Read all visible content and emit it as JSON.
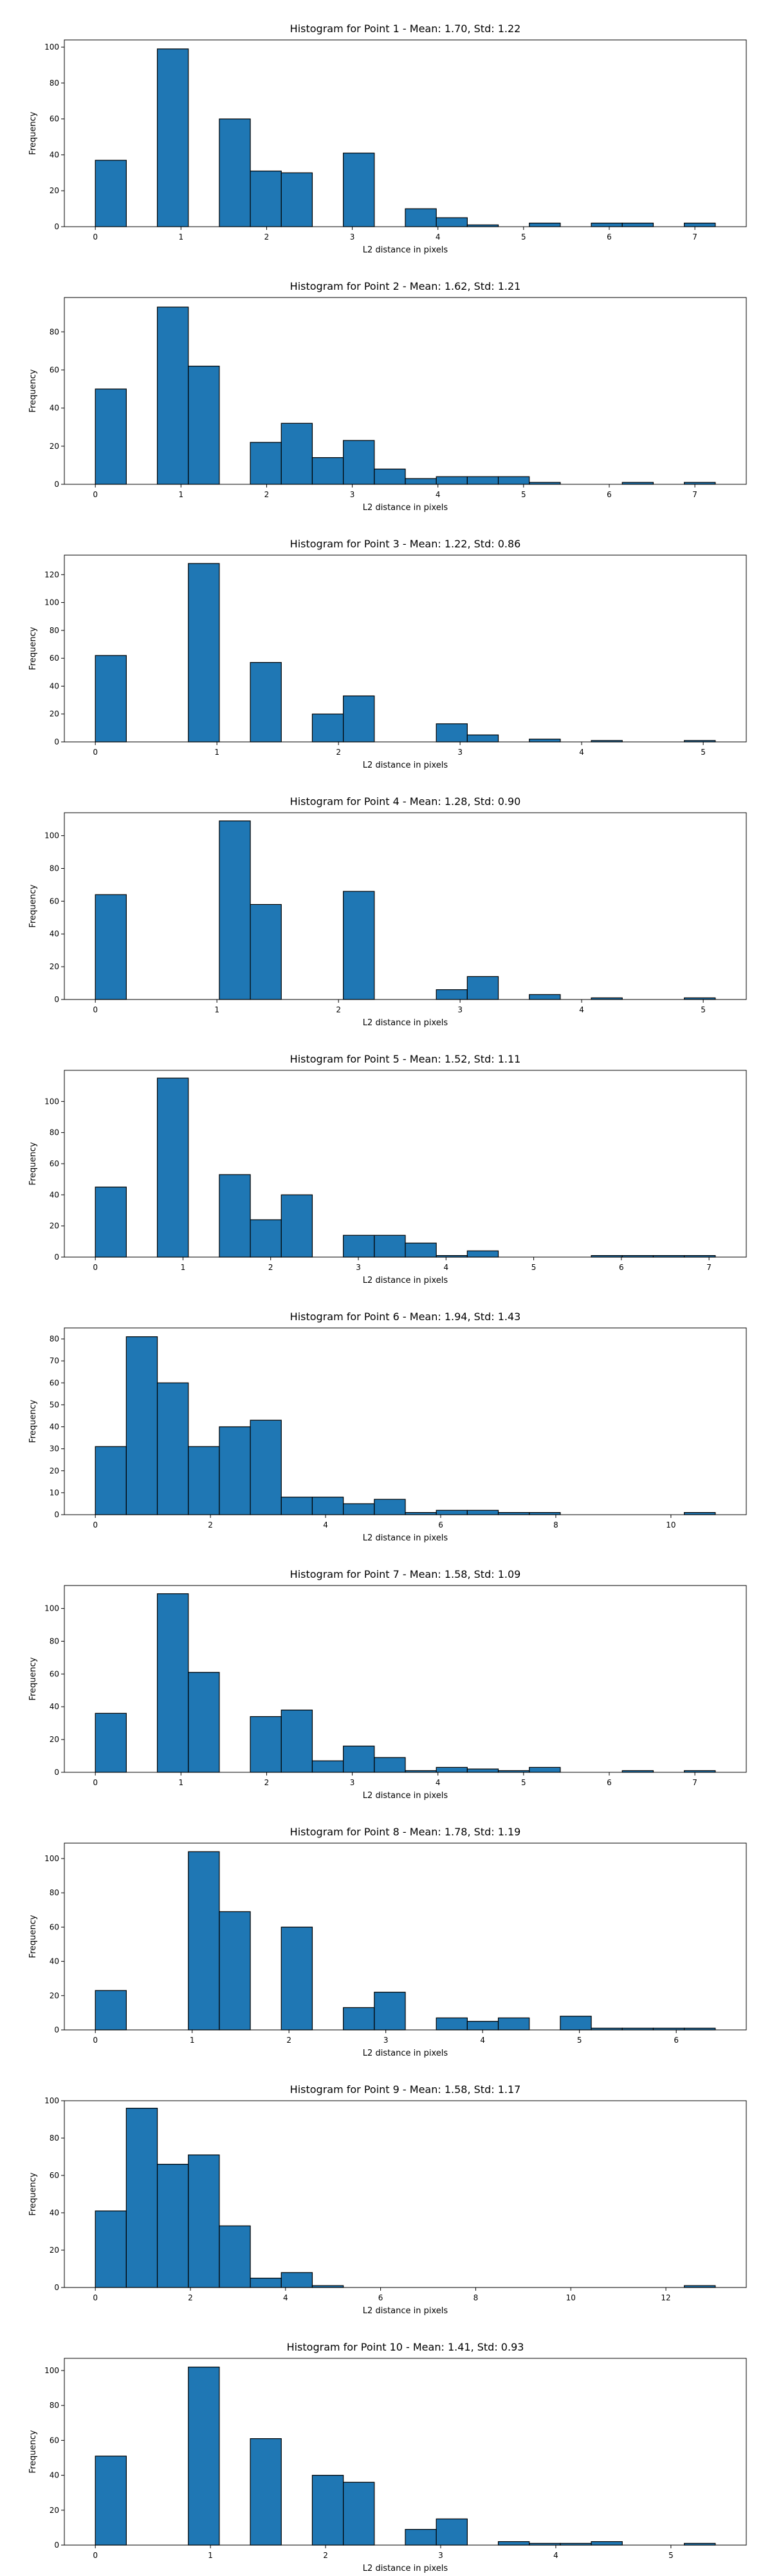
{
  "chart_data": [
    {
      "type": "bar",
      "title": "Histogram for Point 1 - Mean: 1.70, Std: 1.22",
      "xlabel": "L2 distance in pixels",
      "ylabel": "Frequency",
      "bin_edges": [
        0,
        0.3619,
        0.7238,
        1.0857,
        1.4476,
        1.8095,
        2.1714,
        2.5333,
        2.8952,
        3.2571,
        3.619,
        3.981,
        4.3429,
        4.7048,
        5.0667,
        5.4286,
        5.7905,
        6.1524,
        6.5143,
        6.8762,
        7.2381
      ],
      "values": [
        37,
        0,
        99,
        0,
        60,
        31,
        30,
        0,
        41,
        0,
        10,
        5,
        1,
        0,
        2,
        0,
        2,
        2,
        0,
        2
      ],
      "xticks": [
        0,
        1,
        2,
        3,
        4,
        5,
        6,
        7
      ],
      "yticks": [
        0,
        20,
        40,
        60,
        80,
        100
      ],
      "ylim": [
        0,
        104
      ]
    },
    {
      "type": "bar",
      "title": "Histogram for Point 2 - Mean: 1.62, Std: 1.21",
      "xlabel": "L2 distance in pixels",
      "ylabel": "Frequency",
      "bin_edges": [
        0,
        0.3619,
        0.7238,
        1.0857,
        1.4476,
        1.8095,
        2.1714,
        2.5333,
        2.8952,
        3.2571,
        3.619,
        3.981,
        4.3429,
        4.7048,
        5.0667,
        5.4286,
        5.7905,
        6.1524,
        6.5143,
        6.8762,
        7.2381
      ],
      "values": [
        50,
        0,
        93,
        62,
        0,
        22,
        32,
        14,
        23,
        8,
        3,
        4,
        4,
        4,
        1,
        0,
        0,
        1,
        0,
        1
      ],
      "xticks": [
        0,
        1,
        2,
        3,
        4,
        5,
        6,
        7
      ],
      "yticks": [
        0,
        20,
        40,
        60,
        80
      ],
      "ylim": [
        0,
        98
      ]
    },
    {
      "type": "bar",
      "title": "Histogram for Point 3 - Mean: 1.22, Std: 0.86",
      "xlabel": "L2 distance in pixels",
      "ylabel": "Frequency",
      "bin_edges": [
        0,
        0.255,
        0.5099,
        0.7649,
        1.0198,
        1.2748,
        1.5297,
        1.7847,
        2.0396,
        2.2946,
        2.5495,
        2.8045,
        3.0594,
        3.3144,
        3.5693,
        3.8243,
        4.0792,
        4.3342,
        4.5891,
        4.8441,
        5.099
      ],
      "values": [
        62,
        0,
        0,
        128,
        0,
        57,
        0,
        20,
        33,
        0,
        0,
        13,
        5,
        0,
        2,
        0,
        1,
        0,
        0,
        1
      ],
      "xticks": [
        0,
        1,
        2,
        3,
        4,
        5
      ],
      "yticks": [
        0,
        20,
        40,
        60,
        80,
        100,
        120
      ],
      "ylim": [
        0,
        134
      ]
    },
    {
      "type": "bar",
      "title": "Histogram for Point 4 - Mean: 1.28, Std: 0.90",
      "xlabel": "L2 distance in pixels",
      "ylabel": "Frequency",
      "bin_edges": [
        0,
        0.255,
        0.5099,
        0.7649,
        1.0198,
        1.2748,
        1.5297,
        1.7847,
        2.0396,
        2.2946,
        2.5495,
        2.8045,
        3.0594,
        3.3144,
        3.5693,
        3.8243,
        4.0792,
        4.3342,
        4.5891,
        4.8441,
        5.099
      ],
      "values": [
        64,
        0,
        0,
        0,
        109,
        58,
        0,
        0,
        66,
        0,
        0,
        6,
        14,
        0,
        3,
        0,
        1,
        0,
        0,
        1
      ],
      "xticks": [
        0,
        1,
        2,
        3,
        4,
        5
      ],
      "yticks": [
        0,
        20,
        40,
        60,
        80,
        100
      ],
      "ylim": [
        0,
        114
      ]
    },
    {
      "type": "bar",
      "title": "Histogram for Point 5 - Mean: 1.52, Std: 1.11",
      "xlabel": "L2 distance in pixels",
      "ylabel": "Frequency",
      "bin_edges": [
        0,
        0.3536,
        0.7071,
        1.0607,
        1.4142,
        1.7678,
        2.1213,
        2.4749,
        2.8284,
        3.182,
        3.5355,
        3.8891,
        4.2426,
        4.5962,
        4.9497,
        5.3033,
        5.6569,
        6.0104,
        6.364,
        6.7175,
        7.0711
      ],
      "values": [
        45,
        0,
        115,
        0,
        53,
        24,
        40,
        0,
        14,
        14,
        9,
        1,
        4,
        0,
        0,
        0,
        1,
        1,
        1,
        1
      ],
      "xticks": [
        0,
        1,
        2,
        3,
        4,
        5,
        6,
        7
      ],
      "yticks": [
        0,
        20,
        40,
        60,
        80,
        100
      ],
      "ylim": [
        0,
        120
      ]
    },
    {
      "type": "bar",
      "title": "Histogram for Point 6 - Mean: 1.94, Std: 1.43",
      "xlabel": "L2 distance in pixels",
      "ylabel": "Frequency",
      "bin_edges": [
        0,
        0.5385,
        1.077,
        1.6155,
        2.1541,
        2.6926,
        3.2311,
        3.7696,
        4.3081,
        4.8466,
        5.3852,
        5.9237,
        6.4622,
        7.0007,
        7.5392,
        8.0777,
        8.6163,
        9.1548,
        9.6933,
        10.2318,
        10.7703
      ],
      "values": [
        31,
        81,
        60,
        31,
        40,
        43,
        8,
        8,
        5,
        7,
        1,
        2,
        2,
        1,
        1,
        0,
        0,
        0,
        0,
        1
      ],
      "xticks": [
        0,
        2,
        4,
        6,
        8,
        10
      ],
      "yticks": [
        0,
        10,
        20,
        30,
        40,
        50,
        60,
        70,
        80
      ],
      "ylim": [
        0,
        85
      ]
    },
    {
      "type": "bar",
      "title": "Histogram for Point 7 - Mean: 1.58, Std: 1.09",
      "xlabel": "L2 distance in pixels",
      "ylabel": "Frequency",
      "bin_edges": [
        0,
        0.3619,
        0.7238,
        1.0857,
        1.4476,
        1.8095,
        2.1714,
        2.5333,
        2.8952,
        3.2571,
        3.619,
        3.981,
        4.3429,
        4.7048,
        5.0667,
        5.4286,
        5.7905,
        6.1524,
        6.5143,
        6.8762,
        7.2381
      ],
      "values": [
        36,
        0,
        109,
        61,
        0,
        34,
        38,
        7,
        16,
        9,
        1,
        3,
        2,
        1,
        3,
        0,
        0,
        1,
        0,
        1
      ],
      "xticks": [
        0,
        1,
        2,
        3,
        4,
        5,
        6,
        7
      ],
      "yticks": [
        0,
        20,
        40,
        60,
        80,
        100
      ],
      "ylim": [
        0,
        114
      ]
    },
    {
      "type": "bar",
      "title": "Histogram for Point 8 - Mean: 1.78, Std: 1.19",
      "xlabel": "L2 distance in pixels",
      "ylabel": "Frequency",
      "bin_edges": [
        0,
        0.3202,
        0.6403,
        0.9605,
        1.2806,
        1.6008,
        1.9209,
        2.2411,
        2.5612,
        2.8814,
        3.2016,
        3.5217,
        3.8419,
        4.162,
        4.4822,
        4.8023,
        5.1225,
        5.4427,
        5.7628,
        6.083,
        6.4031
      ],
      "values": [
        23,
        0,
        0,
        104,
        69,
        0,
        60,
        0,
        13,
        22,
        0,
        7,
        5,
        7,
        0,
        8,
        1,
        1,
        1,
        1
      ],
      "xticks": [
        0,
        1,
        2,
        3,
        4,
        5,
        6
      ],
      "yticks": [
        0,
        20,
        40,
        60,
        80,
        100
      ],
      "ylim": [
        0,
        109
      ]
    },
    {
      "type": "bar",
      "title": "Histogram for Point 9 - Mean: 1.58, Std: 1.17",
      "xlabel": "L2 distance in pixels",
      "ylabel": "Frequency",
      "bin_edges": [
        0,
        0.6519,
        1.3038,
        1.9558,
        2.6077,
        3.2596,
        3.9115,
        4.5634,
        5.2154,
        5.8673,
        6.5192,
        7.1711,
        7.823,
        8.475,
        9.1269,
        9.7788,
        10.4307,
        11.0826,
        11.7346,
        12.3865,
        13.0384
      ],
      "values": [
        41,
        96,
        66,
        71,
        33,
        5,
        8,
        1,
        0,
        0,
        0,
        0,
        0,
        0,
        0,
        0,
        0,
        0,
        0,
        1
      ],
      "xticks": [
        0,
        2,
        4,
        6,
        8,
        10,
        12
      ],
      "yticks": [
        0,
        20,
        40,
        60,
        80,
        100
      ],
      "ylim": [
        0,
        100
      ]
    },
    {
      "type": "bar",
      "title": "Histogram for Point 10 - Mean: 1.41, Std: 0.93",
      "xlabel": "L2 distance in pixels",
      "ylabel": "Frequency",
      "bin_edges": [
        0,
        0.2693,
        0.5385,
        0.8078,
        1.077,
        1.3463,
        1.6155,
        1.8848,
        2.1541,
        2.4233,
        2.6926,
        2.9618,
        3.2311,
        3.5003,
        3.7696,
        4.0389,
        4.3081,
        4.5774,
        4.8466,
        5.1159,
        5.3852
      ],
      "values": [
        51,
        0,
        0,
        102,
        0,
        61,
        0,
        40,
        36,
        0,
        9,
        15,
        0,
        2,
        1,
        1,
        2,
        0,
        0,
        1
      ],
      "xticks": [
        0,
        1,
        2,
        3,
        4,
        5
      ],
      "yticks": [
        0,
        20,
        40,
        60,
        80,
        100
      ],
      "ylim": [
        0,
        107
      ]
    }
  ]
}
